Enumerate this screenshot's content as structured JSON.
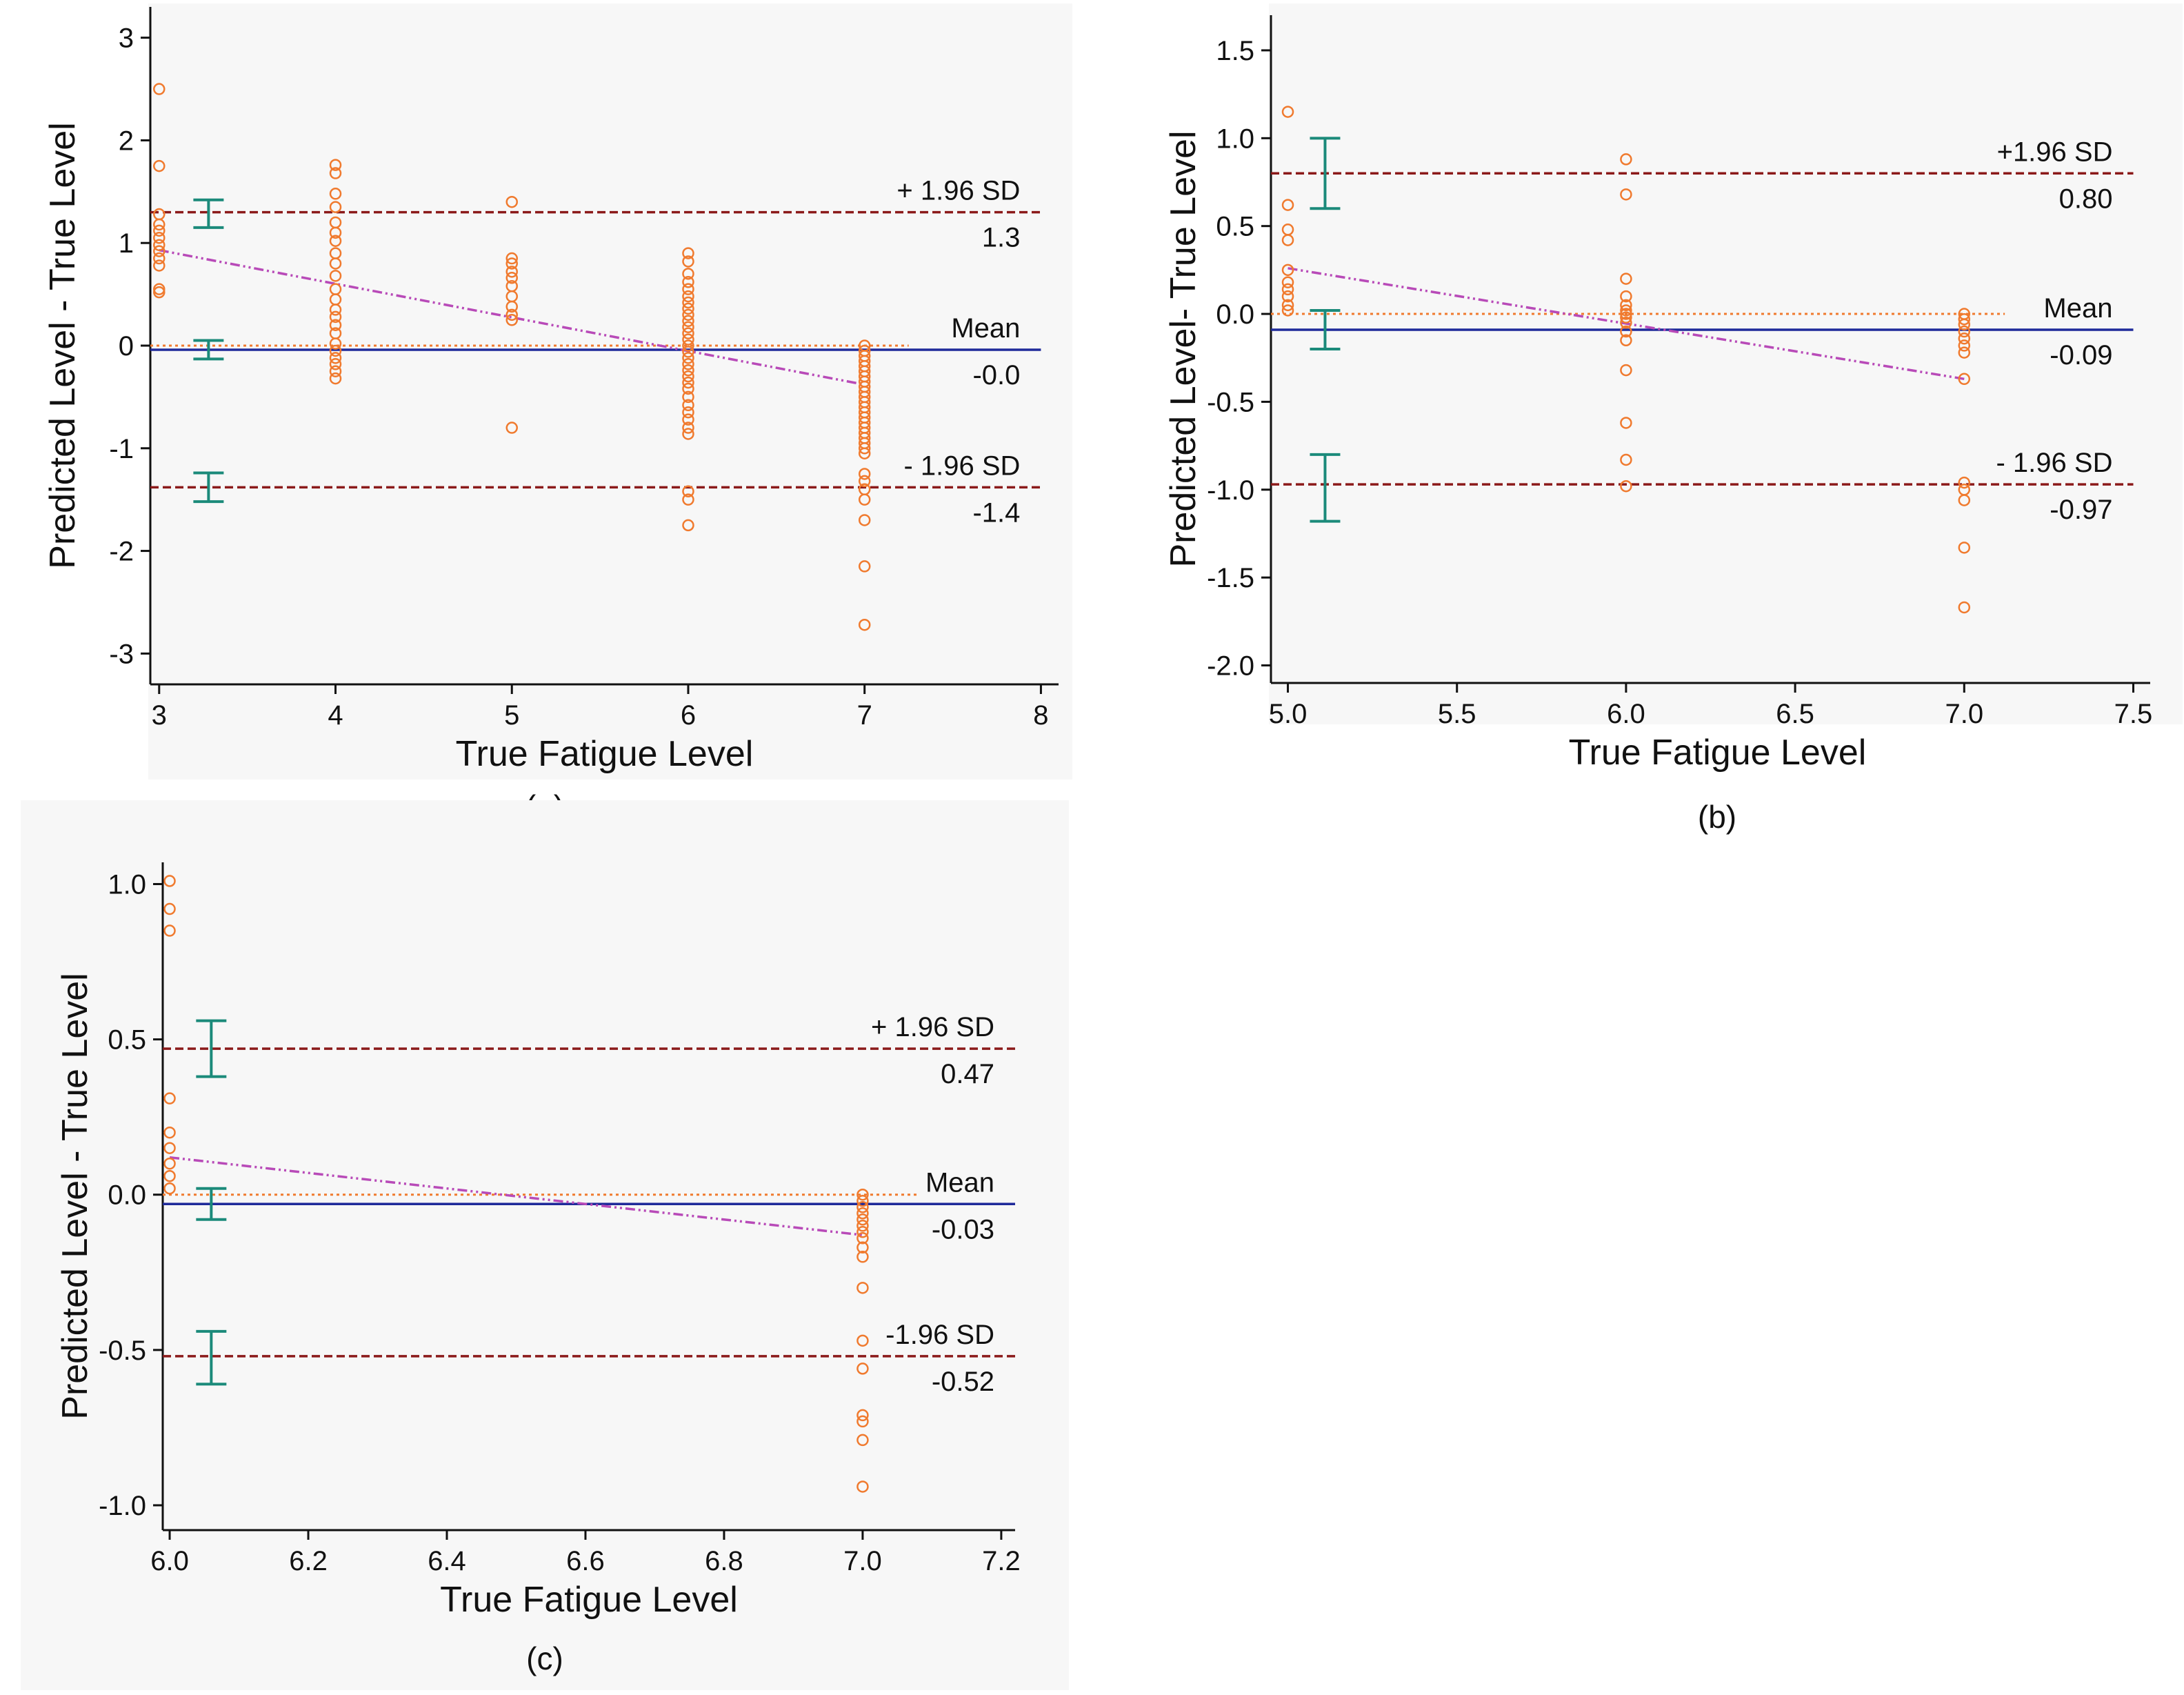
{
  "colors": {
    "points": "#f07a2e",
    "limit_lines": "#8b1a1a",
    "mean_line": "#1f2a9a",
    "zero_line": "#f07a2e",
    "regression_line": "#b84ab8",
    "ci_bars": "#1b8a7a",
    "plot_bg": "#f7f7f7",
    "axis": "#111111"
  },
  "chart_data": [
    {
      "type": "scatter",
      "panel_label": "(a)",
      "title": "",
      "xlabel": "True Fatigue Level",
      "ylabel": "Predicted Level - True Level",
      "xlim": [
        2.95,
        8.1
      ],
      "ylim": [
        -3.3,
        3.3
      ],
      "xticks": [
        3,
        4,
        5,
        6,
        7,
        8
      ],
      "xtick_labels": [
        "3",
        "4",
        "5",
        "6",
        "7",
        "8"
      ],
      "yticks": [
        3,
        2,
        1,
        0,
        -1,
        -2,
        -3
      ],
      "ytick_labels": [
        "3",
        "2",
        "1",
        "0",
        "-1",
        "-2",
        "-3"
      ],
      "line_x_end": 8,
      "zero_x_end": 7.25,
      "upper_loa": 1.3,
      "upper_label": "+ 1.96 SD",
      "upper_value_label": "1.3",
      "mean": -0.04,
      "mean_label": "Mean",
      "mean_value_label": "-0.0",
      "lower_loa": -1.38,
      "lower_label": "- 1.96 SD",
      "lower_value_label": "-1.4",
      "regression": {
        "x": [
          3,
          7
        ],
        "y": [
          0.93,
          -0.38
        ]
      },
      "ci_bars": {
        "x": 3.28,
        "ranges": [
          [
            1.15,
            1.42
          ],
          [
            -0.13,
            0.05
          ],
          [
            -1.52,
            -1.24
          ]
        ]
      },
      "points": [
        [
          3,
          2.5
        ],
        [
          3,
          1.75
        ],
        [
          3,
          1.28
        ],
        [
          3,
          1.18
        ],
        [
          3,
          1.12
        ],
        [
          3,
          1.05
        ],
        [
          3,
          0.98
        ],
        [
          3,
          0.92
        ],
        [
          3,
          0.85
        ],
        [
          3,
          0.78
        ],
        [
          3,
          0.55
        ],
        [
          3,
          0.52
        ],
        [
          4,
          1.76
        ],
        [
          4,
          1.68
        ],
        [
          4,
          1.48
        ],
        [
          4,
          1.35
        ],
        [
          4,
          1.2
        ],
        [
          4,
          1.1
        ],
        [
          4,
          1.02
        ],
        [
          4,
          0.9
        ],
        [
          4,
          0.8
        ],
        [
          4,
          0.68
        ],
        [
          4,
          0.55
        ],
        [
          4,
          0.45
        ],
        [
          4,
          0.35
        ],
        [
          4,
          0.28
        ],
        [
          4,
          0.2
        ],
        [
          4,
          0.12
        ],
        [
          4,
          0.02
        ],
        [
          4,
          -0.05
        ],
        [
          4,
          -0.12
        ],
        [
          4,
          -0.18
        ],
        [
          4,
          -0.25
        ],
        [
          4,
          -0.32
        ],
        [
          5,
          1.4
        ],
        [
          5,
          0.85
        ],
        [
          5,
          0.8
        ],
        [
          5,
          0.72
        ],
        [
          5,
          0.66
        ],
        [
          5,
          0.58
        ],
        [
          5,
          0.48
        ],
        [
          5,
          0.38
        ],
        [
          5,
          0.3
        ],
        [
          5,
          0.25
        ],
        [
          5,
          -0.8
        ],
        [
          6,
          0.9
        ],
        [
          6,
          0.82
        ],
        [
          6,
          0.7
        ],
        [
          6,
          0.62
        ],
        [
          6,
          0.55
        ],
        [
          6,
          0.48
        ],
        [
          6,
          0.42
        ],
        [
          6,
          0.36
        ],
        [
          6,
          0.3
        ],
        [
          6,
          0.24
        ],
        [
          6,
          0.18
        ],
        [
          6,
          0.12
        ],
        [
          6,
          0.06
        ],
        [
          6,
          0.0
        ],
        [
          6,
          -0.06
        ],
        [
          6,
          -0.12
        ],
        [
          6,
          -0.18
        ],
        [
          6,
          -0.24
        ],
        [
          6,
          -0.3
        ],
        [
          6,
          -0.36
        ],
        [
          6,
          -0.42
        ],
        [
          6,
          -0.5
        ],
        [
          6,
          -0.58
        ],
        [
          6,
          -0.65
        ],
        [
          6,
          -0.72
        ],
        [
          6,
          -0.8
        ],
        [
          6,
          -0.86
        ],
        [
          6,
          -1.42
        ],
        [
          6,
          -1.5
        ],
        [
          6,
          -1.75
        ],
        [
          7,
          0.0
        ],
        [
          7,
          -0.05
        ],
        [
          7,
          -0.1
        ],
        [
          7,
          -0.15
        ],
        [
          7,
          -0.2
        ],
        [
          7,
          -0.25
        ],
        [
          7,
          -0.3
        ],
        [
          7,
          -0.35
        ],
        [
          7,
          -0.4
        ],
        [
          7,
          -0.45
        ],
        [
          7,
          -0.5
        ],
        [
          7,
          -0.55
        ],
        [
          7,
          -0.6
        ],
        [
          7,
          -0.65
        ],
        [
          7,
          -0.7
        ],
        [
          7,
          -0.75
        ],
        [
          7,
          -0.8
        ],
        [
          7,
          -0.85
        ],
        [
          7,
          -0.9
        ],
        [
          7,
          -0.95
        ],
        [
          7,
          -1.0
        ],
        [
          7,
          -1.05
        ],
        [
          7,
          -1.25
        ],
        [
          7,
          -1.32
        ],
        [
          7,
          -1.4
        ],
        [
          7,
          -1.5
        ],
        [
          7,
          -1.7
        ],
        [
          7,
          -2.15
        ],
        [
          7,
          -2.72
        ]
      ]
    },
    {
      "type": "scatter",
      "panel_label": "(b)",
      "title": "",
      "xlabel": "True Fatigue Level",
      "ylabel": "Predicted Level- True Level",
      "xlim": [
        4.95,
        7.55
      ],
      "ylim": [
        -2.1,
        1.7
      ],
      "xticks": [
        5.0,
        5.5,
        6.0,
        6.5,
        7.0,
        7.5
      ],
      "xtick_labels": [
        "5.0",
        "5.5",
        "6.0",
        "6.5",
        "7.0",
        "7.5"
      ],
      "yticks": [
        1.5,
        1.0,
        0.5,
        0.0,
        -0.5,
        -1.0,
        -1.5,
        -2.0
      ],
      "ytick_labels": [
        "1.5",
        "1.0",
        "0.5",
        "0.0",
        "-0.5",
        "-1.0",
        "-1.5",
        "-2.0"
      ],
      "line_x_end": 7.5,
      "zero_x_end": 7.12,
      "upper_loa": 0.8,
      "upper_label": "+1.96 SD",
      "upper_value_label": "0.80",
      "mean": -0.09,
      "mean_label": "Mean",
      "mean_value_label": "-0.09",
      "lower_loa": -0.97,
      "lower_label": "- 1.96 SD",
      "lower_value_label": "-0.97",
      "regression": {
        "x": [
          5,
          7
        ],
        "y": [
          0.26,
          -0.37
        ]
      },
      "ci_bars": {
        "x": 5.11,
        "ranges": [
          [
            0.6,
            1.0
          ],
          [
            -0.2,
            0.02
          ],
          [
            -1.18,
            -0.8
          ]
        ]
      },
      "points": [
        [
          5,
          1.15
        ],
        [
          5,
          0.62
        ],
        [
          5,
          0.48
        ],
        [
          5,
          0.42
        ],
        [
          5,
          0.25
        ],
        [
          5,
          0.18
        ],
        [
          5,
          0.14
        ],
        [
          5,
          0.1
        ],
        [
          5,
          0.05
        ],
        [
          5,
          0.02
        ],
        [
          6,
          0.88
        ],
        [
          6,
          0.68
        ],
        [
          6,
          0.2
        ],
        [
          6,
          0.1
        ],
        [
          6,
          0.05
        ],
        [
          6,
          0.02
        ],
        [
          6,
          0.0
        ],
        [
          6,
          -0.02
        ],
        [
          6,
          -0.05
        ],
        [
          6,
          -0.1
        ],
        [
          6,
          -0.15
        ],
        [
          6,
          -0.32
        ],
        [
          6,
          -0.62
        ],
        [
          6,
          -0.83
        ],
        [
          6,
          -0.98
        ],
        [
          7,
          0.0
        ],
        [
          7,
          -0.03
        ],
        [
          7,
          -0.06
        ],
        [
          7,
          -0.1
        ],
        [
          7,
          -0.14
        ],
        [
          7,
          -0.18
        ],
        [
          7,
          -0.22
        ],
        [
          7,
          -0.37
        ],
        [
          7,
          -0.96
        ],
        [
          7,
          -1.0
        ],
        [
          7,
          -1.06
        ],
        [
          7,
          -1.33
        ],
        [
          7,
          -1.67
        ]
      ]
    },
    {
      "type": "scatter",
      "panel_label": "(c)",
      "title": "",
      "xlabel": "True Fatigue Level",
      "ylabel": "Predicted Level - True Level",
      "xlim": [
        5.99,
        7.22
      ],
      "ylim": [
        -1.08,
        1.07
      ],
      "xticks": [
        6.0,
        6.2,
        6.4,
        6.6,
        6.8,
        7.0,
        7.2
      ],
      "xtick_labels": [
        "6.0",
        "6.2",
        "6.4",
        "6.6",
        "6.8",
        "7.0",
        "7.2"
      ],
      "yticks": [
        1.0,
        0.5,
        0.0,
        -0.5,
        -1.0
      ],
      "ytick_labels": [
        "1.0",
        "0.5",
        "0.0",
        "-0.5",
        "-1.0"
      ],
      "line_x_end": 7.22,
      "zero_x_end": 7.08,
      "upper_loa": 0.47,
      "upper_label": "+ 1.96 SD",
      "upper_value_label": "0.47",
      "mean": -0.03,
      "mean_label": "Mean",
      "mean_value_label": "-0.03",
      "lower_loa": -0.52,
      "lower_label": "-1.96 SD",
      "lower_value_label": "-0.52",
      "regression": {
        "x": [
          6,
          7
        ],
        "y": [
          0.12,
          -0.13
        ]
      },
      "ci_bars": {
        "x": 6.06,
        "ranges": [
          [
            0.38,
            0.56
          ],
          [
            -0.08,
            0.02
          ],
          [
            -0.61,
            -0.44
          ]
        ]
      },
      "points": [
        [
          6,
          1.01
        ],
        [
          6,
          0.92
        ],
        [
          6,
          0.85
        ],
        [
          6,
          0.31
        ],
        [
          6,
          0.2
        ],
        [
          6,
          0.15
        ],
        [
          6,
          0.1
        ],
        [
          6,
          0.06
        ],
        [
          6,
          0.02
        ],
        [
          7,
          0.0
        ],
        [
          7,
          -0.02
        ],
        [
          7,
          -0.04
        ],
        [
          7,
          -0.06
        ],
        [
          7,
          -0.08
        ],
        [
          7,
          -0.1
        ],
        [
          7,
          -0.12
        ],
        [
          7,
          -0.14
        ],
        [
          7,
          -0.17
        ],
        [
          7,
          -0.2
        ],
        [
          7,
          -0.3
        ],
        [
          7,
          -0.47
        ],
        [
          7,
          -0.56
        ],
        [
          7,
          -0.71
        ],
        [
          7,
          -0.73
        ],
        [
          7,
          -0.79
        ],
        [
          7,
          -0.94
        ]
      ]
    }
  ]
}
